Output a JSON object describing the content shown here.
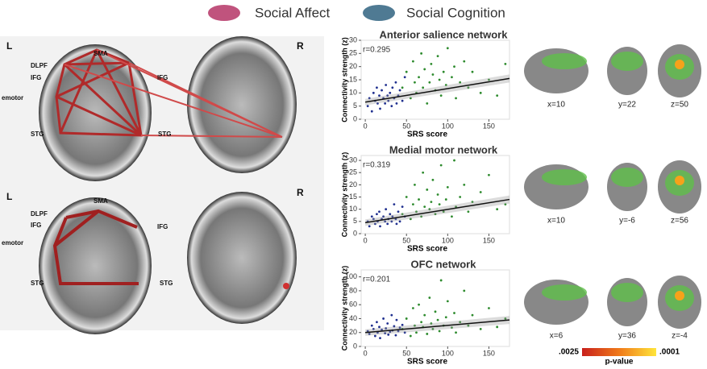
{
  "legend": [
    {
      "label": "Social Affect",
      "color": "#c0537d"
    },
    {
      "label": "Social Cognition",
      "color": "#4f7a93"
    }
  ],
  "brain_top": {
    "left": "L",
    "right": "R",
    "labels": [
      "DLPF",
      "SMA",
      "IFG",
      "emotor",
      "IFG",
      "STG",
      "STG"
    ]
  },
  "brain_bottom": {
    "left": "L",
    "right": "R",
    "labels": [
      "DLPF",
      "SMA",
      "IFG",
      "emotor",
      "IFG",
      "STG",
      "STG"
    ]
  },
  "slices": [
    [
      "x=10",
      "y=22",
      "z=50"
    ],
    [
      "x=10",
      "y=-6",
      "z=56"
    ],
    [
      "x=6",
      "y=36",
      "z=-4"
    ]
  ],
  "colorbar": {
    "low": ".0025",
    "high": ".0001",
    "title": "p-value"
  },
  "chart_data": [
    {
      "type": "scatter",
      "title": "Anterior salience network",
      "annotation": "r=0.295",
      "x_label": "SRS score",
      "y_label": "Connectivity strength (z)",
      "xlim": [
        -5,
        175
      ],
      "xticks": [
        0,
        50,
        100,
        150
      ],
      "ylim": [
        0,
        30
      ],
      "yticks": [
        0,
        5,
        10,
        15,
        20,
        25,
        30
      ],
      "series": [
        {
          "color": "#1f2f8f",
          "x": [
            3,
            5,
            8,
            10,
            12,
            14,
            15,
            17,
            18,
            20,
            22,
            24,
            25,
            27,
            28,
            30,
            32,
            33,
            35,
            37,
            38,
            40,
            42,
            45,
            48
          ],
          "y": [
            5,
            8,
            3,
            10,
            7,
            12,
            6,
            9,
            4,
            11,
            8,
            6,
            13,
            9,
            7,
            10,
            5,
            12,
            8,
            14,
            6,
            9,
            11,
            7,
            16
          ]
        },
        {
          "color": "#2e8b2e",
          "x": [
            45,
            50,
            55,
            58,
            60,
            62,
            65,
            68,
            70,
            72,
            75,
            78,
            80,
            82,
            85,
            88,
            90,
            92,
            95,
            98,
            100,
            105,
            108,
            110,
            115,
            120,
            125,
            130,
            140,
            150,
            160,
            170
          ],
          "y": [
            12,
            18,
            8,
            22,
            14,
            10,
            16,
            25,
            12,
            19,
            6,
            14,
            21,
            17,
            11,
            24,
            15,
            9,
            18,
            13,
            27,
            16,
            20,
            8,
            14,
            22,
            12,
            18,
            10,
            15,
            9,
            21
          ]
        }
      ],
      "trend": {
        "x": [
          0,
          175
        ],
        "y": [
          6.5,
          15.5
        ]
      }
    },
    {
      "type": "scatter",
      "title": "Medial motor network",
      "annotation": "r=0.319",
      "x_label": "SRS score",
      "y_label": "Connectivity strength (z)",
      "xlim": [
        -5,
        175
      ],
      "xticks": [
        0,
        50,
        100,
        150
      ],
      "ylim": [
        0,
        32
      ],
      "yticks": [
        0,
        5,
        10,
        15,
        20,
        25,
        30
      ],
      "series": [
        {
          "color": "#1f2f8f",
          "x": [
            3,
            5,
            8,
            10,
            12,
            14,
            15,
            17,
            18,
            20,
            22,
            24,
            25,
            27,
            28,
            30,
            32,
            33,
            35,
            37,
            38,
            40,
            42,
            45,
            48
          ],
          "y": [
            5,
            3,
            7,
            6,
            4,
            8,
            5,
            9,
            3,
            6,
            7,
            5,
            10,
            4,
            6,
            8,
            5,
            7,
            12,
            6,
            4,
            9,
            5,
            11,
            7
          ]
        },
        {
          "color": "#2e8b2e",
          "x": [
            45,
            50,
            55,
            58,
            60,
            62,
            65,
            68,
            70,
            72,
            75,
            78,
            80,
            82,
            85,
            88,
            90,
            92,
            95,
            98,
            100,
            105,
            108,
            110,
            115,
            120,
            125,
            130,
            140,
            150,
            160,
            170
          ],
          "y": [
            8,
            15,
            6,
            12,
            20,
            9,
            14,
            7,
            25,
            11,
            18,
            10,
            13,
            22,
            8,
            16,
            12,
            28,
            9,
            14,
            19,
            7,
            30,
            11,
            15,
            20,
            9,
            13,
            17,
            24,
            10,
            12
          ]
        }
      ],
      "trend": {
        "x": [
          0,
          175
        ],
        "y": [
          4.5,
          14
        ]
      }
    },
    {
      "type": "scatter",
      "title": "OFC network",
      "annotation": "r=0.201",
      "x_label": "SRS score",
      "y_label": "Connectivity strength (z)",
      "xlim": [
        -5,
        175
      ],
      "xticks": [
        0,
        50,
        100,
        150
      ],
      "ylim": [
        0,
        110
      ],
      "yticks": [
        0,
        20,
        40,
        60,
        80,
        100
      ],
      "series": [
        {
          "color": "#1f2f8f",
          "x": [
            3,
            5,
            8,
            10,
            12,
            14,
            15,
            17,
            18,
            20,
            22,
            24,
            25,
            27,
            28,
            30,
            32,
            33,
            35,
            37,
            38,
            40,
            42,
            45,
            48
          ],
          "y": [
            22,
            18,
            30,
            25,
            15,
            35,
            20,
            28,
            12,
            24,
            40,
            19,
            26,
            33,
            17,
            21,
            45,
            23,
            29,
            16,
            38,
            22,
            27,
            31,
            20
          ]
        },
        {
          "color": "#2e8b2e",
          "x": [
            45,
            50,
            55,
            58,
            60,
            62,
            65,
            68,
            70,
            72,
            75,
            78,
            80,
            82,
            85,
            88,
            90,
            92,
            95,
            98,
            100,
            105,
            108,
            110,
            115,
            120,
            125,
            130,
            140,
            150,
            160,
            170
          ],
          "y": [
            25,
            40,
            15,
            55,
            30,
            20,
            60,
            35,
            28,
            45,
            18,
            70,
            33,
            25,
            50,
            38,
            22,
            95,
            30,
            42,
            65,
            27,
            48,
            20,
            35,
            80,
            30,
            45,
            25,
            55,
            28,
            40
          ]
        }
      ],
      "trend": {
        "x": [
          0,
          175
        ],
        "y": [
          20,
          38
        ]
      }
    }
  ]
}
